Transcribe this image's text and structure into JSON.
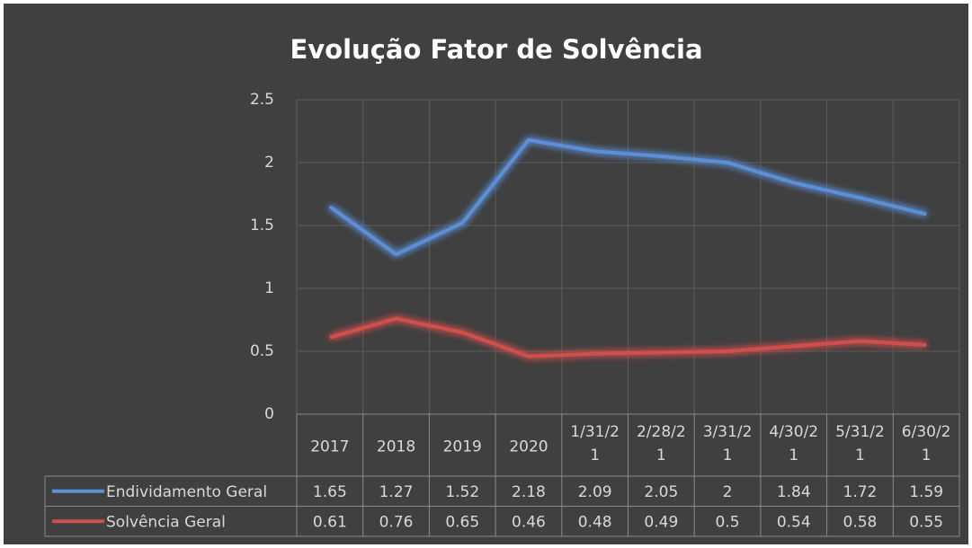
{
  "chart_data": {
    "type": "line",
    "title": "Evolução Fator de Solvência",
    "categories": [
      "2017",
      "2018",
      "2019",
      "2020",
      "1/31/21",
      "2/28/21",
      "3/31/21",
      "4/30/21",
      "5/31/21",
      "6/30/21"
    ],
    "series": [
      {
        "name": "Endividamento Geral",
        "color": "#5b8fd6",
        "values": [
          1.65,
          1.27,
          1.52,
          2.18,
          2.09,
          2.05,
          2,
          1.84,
          1.72,
          1.59
        ]
      },
      {
        "name": "Solvência Geral",
        "color": "#d0504d",
        "values": [
          0.61,
          0.76,
          0.65,
          0.46,
          0.48,
          0.49,
          0.5,
          0.54,
          0.58,
          0.55
        ]
      }
    ],
    "ylim": [
      0,
      2.5
    ],
    "yticks": [
      0,
      0.5,
      1,
      1.5,
      2,
      2.5
    ],
    "grid": true,
    "data_table": true
  }
}
